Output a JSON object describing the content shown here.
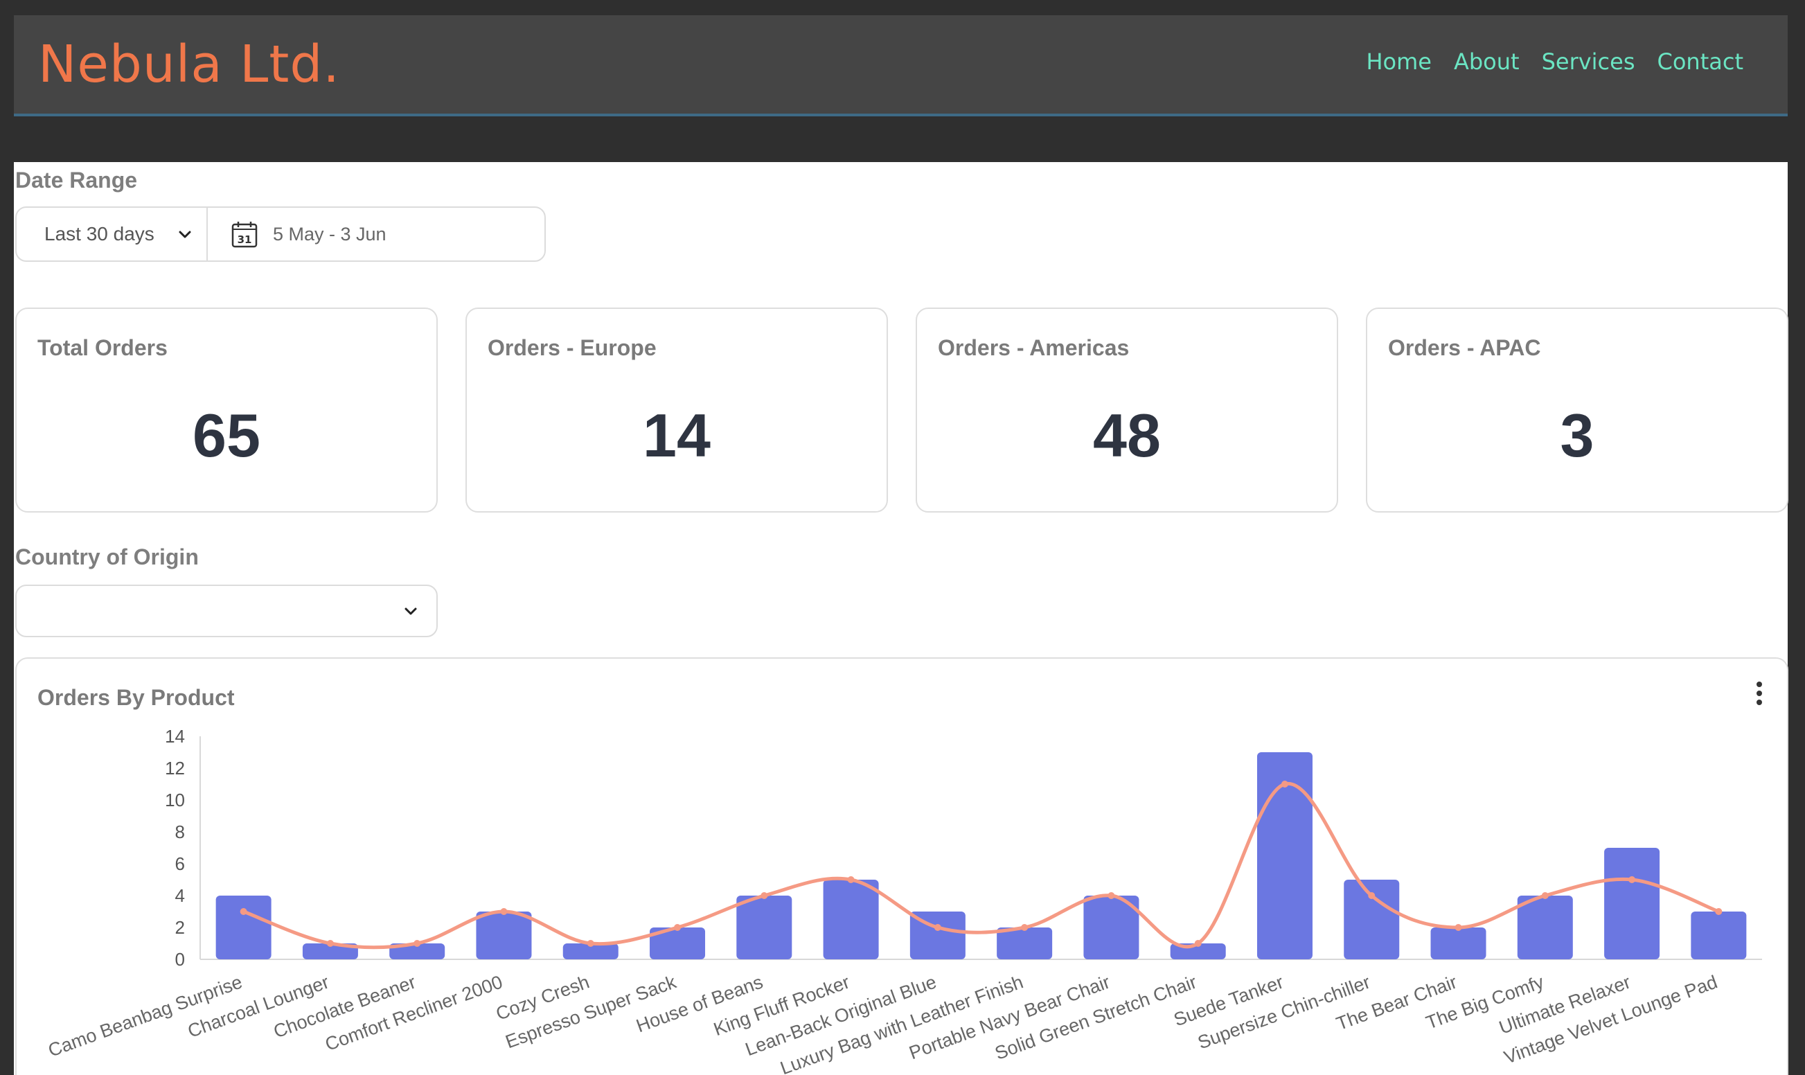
{
  "brand": "Nebula Ltd.",
  "nav": [
    "Home",
    "About",
    "Services",
    "Contact"
  ],
  "date_range": {
    "label": "Date Range",
    "select_value": "Last 30 days",
    "dates": "5 May - 3 Jun",
    "calendar_day": "31"
  },
  "cards": [
    {
      "title": "Total Orders",
      "value": "65"
    },
    {
      "title": "Orders - Europe",
      "value": "14"
    },
    {
      "title": "Orders - Americas",
      "value": "48"
    },
    {
      "title": "Orders - APAC",
      "value": "3"
    }
  ],
  "country": {
    "label": "Country of Origin",
    "value": ""
  },
  "chart_title": "Orders By Product",
  "colors": {
    "bar": "#6b77e1",
    "line": "#f59a84",
    "brand": "#f0774a",
    "nav": "#6be5c3"
  },
  "chart_data": {
    "type": "bar",
    "title": "Orders By Product",
    "categories": [
      "Camo Beanbag Surprise",
      "Charcoal Lounger",
      "Chocolate Beaner",
      "Comfort Recliner 2000",
      "Cozy Cresh",
      "Espresso Super Sack",
      "House of Beans",
      "King Fluff Rocker",
      "Lean-Back Original Blue",
      "Luxury Bag with Leather Finish",
      "Portable Navy Bear Chair",
      "Solid Green Stretch Chair",
      "Suede Tanker",
      "Supersize Chin-chiller",
      "The Bear Chair",
      "The Big Comfy",
      "Ultimate Relaxer",
      "Vintage Velvet Lounge Pad"
    ],
    "series": [
      {
        "type": "bar",
        "values": [
          4,
          1,
          1,
          3,
          1,
          2,
          4,
          5,
          3,
          2,
          4,
          1,
          13,
          5,
          2,
          4,
          7,
          3
        ]
      },
      {
        "type": "line",
        "values": [
          3,
          1,
          1,
          3,
          1,
          2,
          4,
          5,
          2,
          2,
          4,
          1,
          11,
          4,
          2,
          4,
          5,
          3
        ]
      }
    ],
    "yticks": [
      0,
      2,
      4,
      6,
      8,
      10,
      12,
      14
    ],
    "ylim": [
      0,
      14
    ],
    "legend": "none"
  }
}
